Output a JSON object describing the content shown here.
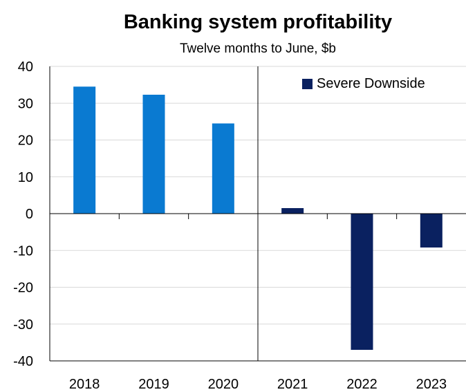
{
  "title": "Banking system profitability",
  "subtitle": "Twelve months to June, $b",
  "colors": {
    "historical": "#0a7ad1",
    "scenario": "#0a2160",
    "grid": "#d9d9d9"
  },
  "legend": {
    "label": "Severe Downside",
    "color": "#0a2160"
  },
  "chart_data": {
    "type": "bar",
    "title": "Banking system profitability",
    "subtitle": "Twelve months to June, $b",
    "categories": [
      "2018",
      "2019",
      "2020",
      "2021",
      "2022",
      "2023"
    ],
    "values": [
      34.5,
      32.3,
      24.5,
      1.5,
      -37.0,
      -9.2
    ],
    "bar_groups": [
      "historical",
      "historical",
      "historical",
      "scenario",
      "scenario",
      "scenario"
    ],
    "legend": [
      "Severe Downside"
    ],
    "legend_position": "top-right",
    "ylim": [
      -40,
      40
    ],
    "yticks": [
      40,
      30,
      20,
      10,
      0,
      -10,
      -20,
      -30,
      -40
    ],
    "grid": true,
    "xlabel": "",
    "ylabel": ""
  }
}
